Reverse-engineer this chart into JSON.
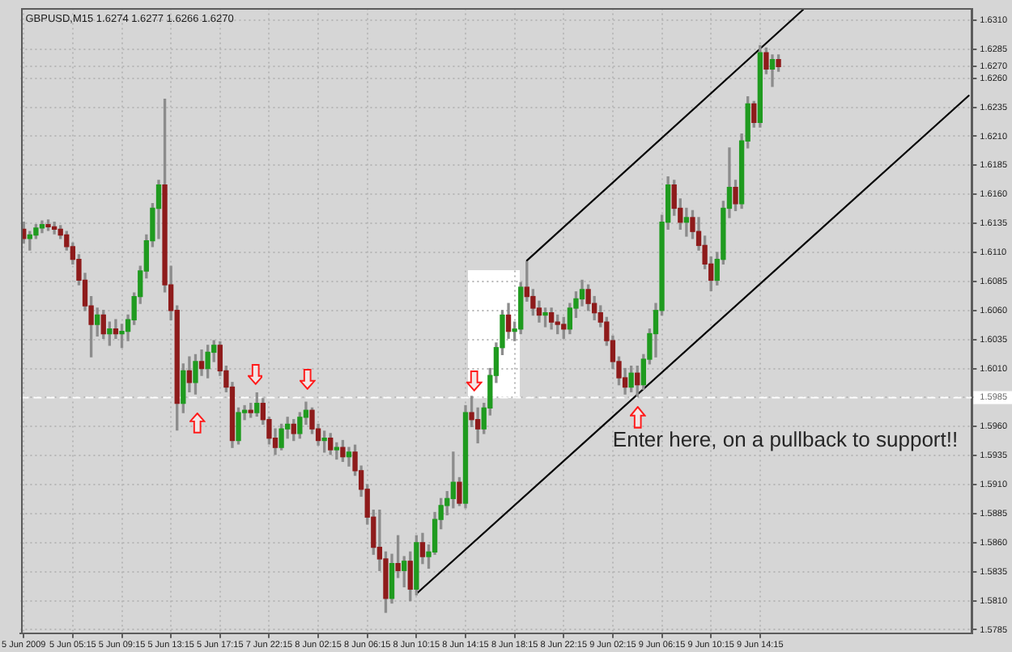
{
  "chart_data": {
    "type": "candlestick",
    "title": "GBPUSD,M15 1.6274 1.6277 1.6266 1.6270",
    "categories": [
      "5 Jun 2009",
      null,
      null,
      null,
      null,
      null,
      null,
      null,
      "5 Jun 05:15",
      null,
      null,
      null,
      null,
      null,
      null,
      null,
      "5 Jun 09:15",
      null,
      null,
      null,
      null,
      null,
      null,
      null,
      "5 Jun 13:15",
      null,
      null,
      null,
      null,
      null,
      null,
      null,
      "5 Jun 17:15",
      null,
      null,
      null,
      null,
      null,
      null,
      null,
      "7 Jun 22:15",
      null,
      null,
      null,
      null,
      null,
      null,
      null,
      "8 Jun 02:15",
      null,
      null,
      null,
      null,
      null,
      null,
      null,
      "8 Jun 06:15",
      null,
      null,
      null,
      null,
      null,
      null,
      null,
      "8 Jun 10:15",
      null,
      null,
      null,
      null,
      null,
      null,
      null,
      "8 Jun 14:15",
      null,
      null,
      null,
      null,
      null,
      null,
      null,
      "8 Jun 18:15",
      null,
      null,
      null,
      null,
      null,
      null,
      null,
      "8 Jun 22:15",
      null,
      null,
      null,
      null,
      null,
      null,
      null,
      "9 Jun 02:15",
      null,
      null,
      null,
      null,
      null,
      null,
      null,
      "9 Jun 06:15",
      null,
      null,
      null,
      null,
      null,
      null,
      null,
      "9 Jun 10:15",
      null,
      null,
      null,
      null,
      null,
      null,
      null,
      "9 Jun 14:15",
      null,
      null,
      null,
      null,
      null,
      null,
      null,
      null,
      null,
      null,
      null,
      null,
      null,
      null,
      null,
      null,
      null,
      null,
      null,
      null,
      null,
      null,
      null,
      null,
      null,
      null,
      null,
      null,
      null,
      null,
      null,
      null,
      null,
      null
    ],
    "ohlc": [
      [
        1.613,
        1.6136,
        1.6118,
        1.6122
      ],
      [
        1.6122,
        1.6128,
        1.6112,
        1.6125
      ],
      [
        1.6125,
        1.6134,
        1.6122,
        1.6131
      ],
      [
        1.6131,
        1.6137,
        1.6127,
        1.6134
      ],
      [
        1.6134,
        1.6138,
        1.6129,
        1.6132
      ],
      [
        1.6132,
        1.6136,
        1.6126,
        1.613
      ],
      [
        1.613,
        1.6133,
        1.6122,
        1.6125
      ],
      [
        1.6125,
        1.6128,
        1.6112,
        1.6115
      ],
      [
        1.6115,
        1.6118,
        1.61,
        1.6104
      ],
      [
        1.6104,
        1.6108,
        1.6082,
        1.6086
      ],
      [
        1.6086,
        1.6092,
        1.606,
        1.6064
      ],
      [
        1.6064,
        1.6072,
        1.602,
        1.6048
      ],
      [
        1.6048,
        1.6062,
        1.6038,
        1.6056
      ],
      [
        1.6056,
        1.606,
        1.6036,
        1.604
      ],
      [
        1.604,
        1.605,
        1.603,
        1.6044
      ],
      [
        1.6044,
        1.6052,
        1.6036,
        1.604
      ],
      [
        1.604,
        1.6048,
        1.6028,
        1.6042
      ],
      [
        1.6042,
        1.6056,
        1.6034,
        1.6052
      ],
      [
        1.6052,
        1.6075,
        1.6048,
        1.6072
      ],
      [
        1.6072,
        1.6098,
        1.6066,
        1.6094
      ],
      [
        1.6094,
        1.6125,
        1.6088,
        1.612
      ],
      [
        1.612,
        1.6152,
        1.6115,
        1.6148
      ],
      [
        1.6148,
        1.6172,
        1.6122,
        1.6168
      ],
      [
        1.6168,
        1.6242,
        1.6076,
        1.6082
      ],
      [
        1.6082,
        1.6098,
        1.6052,
        1.606
      ],
      [
        1.606,
        1.6064,
        1.5957,
        1.598
      ],
      [
        1.598,
        1.6014,
        1.5972,
        1.6008
      ],
      [
        1.6008,
        1.602,
        1.599,
        1.5998
      ],
      [
        1.5998,
        1.6022,
        1.5988,
        1.6016
      ],
      [
        1.6016,
        1.6026,
        1.6004,
        1.601
      ],
      [
        1.601,
        1.603,
        1.6002,
        1.6024
      ],
      [
        1.6024,
        1.6034,
        1.6016,
        1.603
      ],
      [
        1.603,
        1.6033,
        1.6004,
        1.6008
      ],
      [
        1.6008,
        1.6012,
        1.599,
        1.5994
      ],
      [
        1.5994,
        1.5998,
        1.5942,
        1.5948
      ],
      [
        1.5948,
        1.5976,
        1.5945,
        1.5972
      ],
      [
        1.5972,
        1.5978,
        1.5966,
        1.5974
      ],
      [
        1.5974,
        1.598,
        1.5968,
        1.5972
      ],
      [
        1.5972,
        1.5989,
        1.5969,
        1.598
      ],
      [
        1.598,
        1.5984,
        1.5962,
        1.5966
      ],
      [
        1.5966,
        1.5968,
        1.5945,
        1.595
      ],
      [
        1.595,
        1.5958,
        1.5936,
        1.5942
      ],
      [
        1.5942,
        1.5962,
        1.594,
        1.5958
      ],
      [
        1.5958,
        1.5968,
        1.595,
        1.5962
      ],
      [
        1.5962,
        1.5966,
        1.5948,
        1.5954
      ],
      [
        1.5954,
        1.5972,
        1.595,
        1.5968
      ],
      [
        1.5968,
        1.5981,
        1.5962,
        1.5974
      ],
      [
        1.5974,
        1.5976,
        1.5954,
        1.5958
      ],
      [
        1.5958,
        1.5962,
        1.5944,
        1.5948
      ],
      [
        1.5948,
        1.5956,
        1.5938,
        1.595
      ],
      [
        1.595,
        1.5954,
        1.5936,
        1.594
      ],
      [
        1.594,
        1.5946,
        1.5932,
        1.5942
      ],
      [
        1.5942,
        1.5948,
        1.593,
        1.5934
      ],
      [
        1.5934,
        1.5942,
        1.5926,
        1.5938
      ],
      [
        1.5938,
        1.5944,
        1.5918,
        1.5922
      ],
      [
        1.5922,
        1.5926,
        1.59,
        1.5906
      ],
      [
        1.5906,
        1.591,
        1.5876,
        1.5882
      ],
      [
        1.5882,
        1.5888,
        1.585,
        1.5856
      ],
      [
        1.5856,
        1.5888,
        1.5836,
        1.5846
      ],
      [
        1.5846,
        1.5852,
        1.58,
        1.5812
      ],
      [
        1.5812,
        1.585,
        1.5808,
        1.5842
      ],
      [
        1.5842,
        1.5866,
        1.583,
        1.5836
      ],
      [
        1.5836,
        1.5848,
        1.5822,
        1.5844
      ],
      [
        1.5844,
        1.5852,
        1.581,
        1.582
      ],
      [
        1.582,
        1.5866,
        1.5815,
        1.586
      ],
      [
        1.586,
        1.5868,
        1.5842,
        1.5848
      ],
      [
        1.5848,
        1.5858,
        1.5838,
        1.5852
      ],
      [
        1.5852,
        1.5886,
        1.585,
        1.588
      ],
      [
        1.588,
        1.5898,
        1.5872,
        1.5892
      ],
      [
        1.5892,
        1.5904,
        1.5884,
        1.5898
      ],
      [
        1.5898,
        1.5938,
        1.589,
        1.5912
      ],
      [
        1.5912,
        1.5916,
        1.5892,
        1.5894
      ],
      [
        1.5894,
        1.5978,
        1.589,
        1.5972
      ],
      [
        1.5972,
        1.5986,
        1.596,
        1.5966
      ],
      [
        1.5966,
        1.5976,
        1.5946,
        1.5958
      ],
      [
        1.5958,
        1.598,
        1.5954,
        1.5976
      ],
      [
        1.5976,
        1.601,
        1.597,
        1.6004
      ],
      [
        1.6004,
        1.6032,
        1.5998,
        1.6028
      ],
      [
        1.6028,
        1.606,
        1.6022,
        1.6056
      ],
      [
        1.6056,
        1.6066,
        1.6036,
        1.6042
      ],
      [
        1.6042,
        1.605,
        1.6034,
        1.6044
      ],
      [
        1.6044,
        1.6084,
        1.604,
        1.608
      ],
      [
        1.608,
        1.6102,
        1.6068,
        1.6072
      ],
      [
        1.6072,
        1.6078,
        1.6056,
        1.6062
      ],
      [
        1.6062,
        1.6068,
        1.605,
        1.6056
      ],
      [
        1.6056,
        1.6062,
        1.6046,
        1.6058
      ],
      [
        1.6058,
        1.6062,
        1.6044,
        1.605
      ],
      [
        1.605,
        1.6056,
        1.604,
        1.6048
      ],
      [
        1.6048,
        1.6054,
        1.6036,
        1.6044
      ],
      [
        1.6044,
        1.6066,
        1.604,
        1.6062
      ],
      [
        1.6062,
        1.6076,
        1.6054,
        1.607
      ],
      [
        1.607,
        1.6086,
        1.6064,
        1.6078
      ],
      [
        1.6078,
        1.6082,
        1.606,
        1.6066
      ],
      [
        1.6066,
        1.6072,
        1.6052,
        1.6058
      ],
      [
        1.6058,
        1.6064,
        1.6046,
        1.605
      ],
      [
        1.605,
        1.6054,
        1.603,
        1.6034
      ],
      [
        1.6034,
        1.6038,
        1.601,
        1.6016
      ],
      [
        1.6016,
        1.602,
        1.5996,
        1.6002
      ],
      [
        1.6002,
        1.601,
        1.5988,
        1.5994
      ],
      [
        1.5994,
        1.6012,
        1.599,
        1.6006
      ],
      [
        1.6006,
        1.6012,
        1.5986,
        1.5996
      ],
      [
        1.5996,
        1.6022,
        1.5992,
        1.6018
      ],
      [
        1.6018,
        1.6044,
        1.6014,
        1.604
      ],
      [
        1.604,
        1.6066,
        1.602,
        1.606
      ],
      [
        1.606,
        1.6142,
        1.6056,
        1.6136
      ],
      [
        1.6136,
        1.6175,
        1.613,
        1.6168
      ],
      [
        1.6168,
        1.6172,
        1.6142,
        1.6148
      ],
      [
        1.6148,
        1.6156,
        1.613,
        1.6136
      ],
      [
        1.6136,
        1.6148,
        1.6124,
        1.614
      ],
      [
        1.614,
        1.6146,
        1.6122,
        1.6128
      ],
      [
        1.6128,
        1.614,
        1.6112,
        1.6116
      ],
      [
        1.6116,
        1.6124,
        1.6096,
        1.61
      ],
      [
        1.61,
        1.6106,
        1.6077,
        1.6086
      ],
      [
        1.6086,
        1.611,
        1.6082,
        1.6104
      ],
      [
        1.6104,
        1.6154,
        1.61,
        1.6148
      ],
      [
        1.6148,
        1.62,
        1.614,
        1.6166
      ],
      [
        1.6166,
        1.6172,
        1.6146,
        1.6152
      ],
      [
        1.6152,
        1.6212,
        1.6148,
        1.6206
      ],
      [
        1.6206,
        1.6244,
        1.62,
        1.6238
      ],
      [
        1.6238,
        1.624,
        1.6218,
        1.6222
      ],
      [
        1.6222,
        1.6288,
        1.6218,
        1.6282
      ],
      [
        1.6282,
        1.6286,
        1.6264,
        1.6268
      ],
      [
        1.6268,
        1.628,
        1.6253,
        1.6276
      ],
      [
        1.6276,
        1.628,
        1.6266,
        1.627
      ],
      null,
      null,
      null,
      null,
      null,
      null,
      null,
      null,
      null,
      null,
      null,
      null,
      null,
      null,
      null,
      null,
      null,
      null,
      null,
      null,
      null,
      null,
      null,
      null,
      null,
      null,
      null,
      null,
      null,
      null,
      null
    ],
    "ylim": [
      1.5782,
      1.632
    ],
    "yticks": [
      {
        "value": 1.5785,
        "label": "1.5785"
      },
      {
        "value": 1.581,
        "label": "1.5810"
      },
      {
        "value": 1.5835,
        "label": "1.5835"
      },
      {
        "value": 1.586,
        "label": "1.5860"
      },
      {
        "value": 1.5885,
        "label": "1.5885"
      },
      {
        "value": 1.591,
        "label": "1.5910"
      },
      {
        "value": 1.5935,
        "label": "1.5935"
      },
      {
        "value": 1.596,
        "label": "1.5960"
      },
      {
        "value": 1.5985,
        "label": null
      },
      {
        "value": 1.601,
        "label": "1.6010"
      },
      {
        "value": 1.6035,
        "label": "1.6035"
      },
      {
        "value": 1.606,
        "label": "1.6060"
      },
      {
        "value": 1.6085,
        "label": "1.6085"
      },
      {
        "value": 1.611,
        "label": "1.6110"
      },
      {
        "value": 1.6135,
        "label": "1.6135"
      },
      {
        "value": 1.616,
        "label": "1.6160"
      },
      {
        "value": 1.6185,
        "label": "1.6185"
      },
      {
        "value": 1.621,
        "label": "1.6210"
      },
      {
        "value": 1.6235,
        "label": "1.6235"
      },
      {
        "value": 1.626,
        "label": "1.6260"
      },
      {
        "value": 1.627,
        "label": "1.6270"
      },
      {
        "value": 1.6285,
        "label": "1.6285"
      },
      {
        "value": 1.631,
        "label": "1.6310"
      }
    ],
    "grid": true,
    "series": [
      {
        "type": "line",
        "color": "#000000",
        "values": [
          null,
          null,
          null,
          null,
          null,
          null,
          null,
          null,
          null,
          null,
          null,
          null,
          null,
          null,
          null,
          null,
          null,
          null,
          null,
          null,
          null,
          null,
          null,
          null,
          null,
          null,
          null,
          null,
          null,
          null,
          null,
          null,
          null,
          null,
          null,
          null,
          null,
          null,
          null,
          null,
          null,
          null,
          null,
          null,
          null,
          null,
          null,
          null,
          null,
          null,
          null,
          null,
          null,
          null,
          null,
          null,
          null,
          null,
          null,
          null,
          null,
          null,
          null,
          null,
          null,
          null,
          null,
          null,
          null,
          null,
          null,
          null,
          null,
          null,
          null,
          null,
          null,
          null,
          null,
          null,
          null,
          null,
          1.6103,
          null,
          null,
          null,
          null,
          null,
          null,
          null,
          null,
          null,
          null,
          null,
          null,
          null,
          null,
          null,
          null,
          null,
          null,
          null,
          null,
          null,
          null,
          null,
          null,
          null,
          null,
          null,
          null,
          null,
          null,
          null,
          null,
          null,
          null,
          null,
          null,
          null,
          null,
          null,
          null,
          null,
          null,
          null,
          null,
          1.6319,
          null,
          null,
          null,
          null,
          null,
          null,
          null,
          null,
          null,
          null,
          null,
          null,
          null,
          null,
          null,
          null,
          null,
          null,
          null,
          null,
          null,
          null,
          null,
          null,
          null,
          null,
          null
        ]
      },
      {
        "type": "line",
        "color": "#000000",
        "values": [
          null,
          null,
          null,
          null,
          null,
          null,
          null,
          null,
          null,
          null,
          null,
          null,
          null,
          null,
          null,
          null,
          null,
          null,
          null,
          null,
          null,
          null,
          null,
          null,
          null,
          null,
          null,
          null,
          null,
          null,
          null,
          null,
          null,
          null,
          null,
          null,
          null,
          null,
          null,
          null,
          null,
          null,
          null,
          null,
          null,
          null,
          null,
          null,
          null,
          null,
          null,
          null,
          null,
          null,
          null,
          null,
          null,
          null,
          null,
          null,
          null,
          null,
          null,
          null,
          1.5816,
          null,
          null,
          null,
          null,
          null,
          null,
          null,
          null,
          null,
          null,
          null,
          null,
          null,
          null,
          null,
          null,
          null,
          null,
          null,
          null,
          null,
          null,
          null,
          null,
          null,
          null,
          null,
          null,
          null,
          null,
          null,
          null,
          null,
          null,
          null,
          null,
          null,
          null,
          null,
          null,
          null,
          null,
          null,
          null,
          null,
          null,
          null,
          null,
          null,
          null,
          null,
          null,
          null,
          null,
          null,
          null,
          null,
          null,
          null,
          null,
          null,
          null,
          null,
          null,
          null,
          null,
          null,
          null,
          null,
          null,
          null,
          null,
          null,
          null,
          null,
          null,
          null,
          null,
          null,
          null,
          null,
          null,
          null,
          null,
          null,
          null,
          null,
          null,
          null,
          1.6245
        ]
      }
    ],
    "ref_lines": [
      {
        "axis": "y",
        "value": 1.5985,
        "label": "1.5985",
        "color": "#ffffff",
        "line_style": "dashed"
      }
    ],
    "annotations": [
      {
        "text": "Enter here, on a pullback to support!!",
        "y": 1.5986
      }
    ]
  }
}
